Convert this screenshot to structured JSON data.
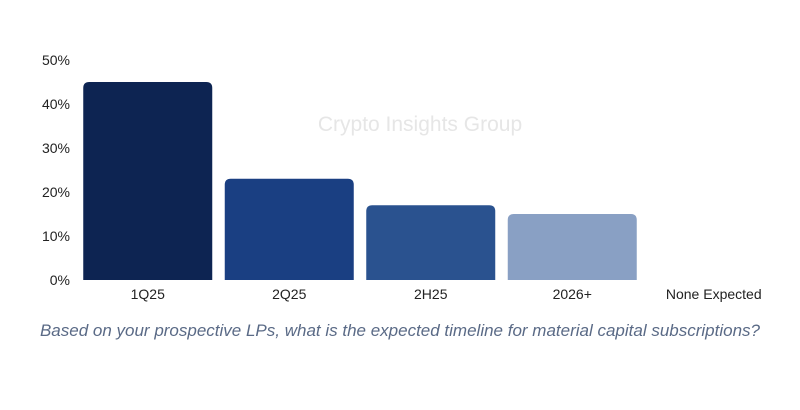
{
  "chart_data": {
    "type": "bar",
    "categories": [
      "1Q25",
      "2Q25",
      "2H25",
      "2026+",
      "None Expected"
    ],
    "values": [
      45,
      23,
      17,
      15,
      0
    ],
    "colors": [
      "#0d2452",
      "#1a3f82",
      "#2a528f",
      "#89a0c4",
      "#89a0c4"
    ],
    "ylim": [
      0,
      50
    ],
    "yticks": [
      "0%",
      "10%",
      "20%",
      "30%",
      "40%",
      "50%"
    ],
    "ytick_values": [
      0,
      10,
      20,
      30,
      40,
      50
    ],
    "xlabel": "",
    "ylabel": "",
    "grid": false,
    "watermark": "Crypto Insights Group",
    "title": "Based on your prospective LPs, what is the expected timeline for material capital subscriptions?"
  }
}
